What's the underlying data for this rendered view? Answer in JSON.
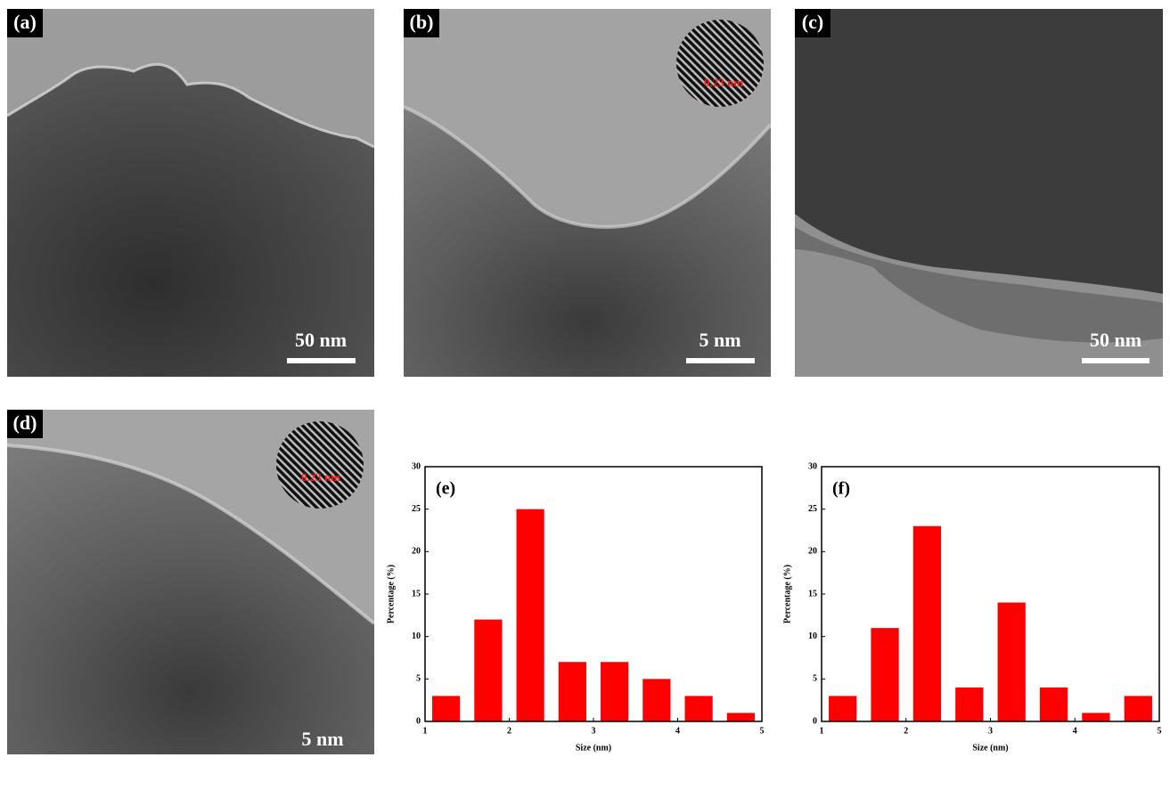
{
  "panels": [
    {
      "label": "(a)",
      "scale": "50 nm"
    },
    {
      "label": "(b)",
      "scale": "5 nm",
      "inset": "0.23 nm"
    },
    {
      "label": "(c)",
      "scale": "50 nm"
    },
    {
      "label": "(d)",
      "scale": "5 nm",
      "inset": "0.23 nm"
    }
  ],
  "chart_data": [
    {
      "type": "bar",
      "label": "(e)",
      "x_label": "Size (nm)",
      "y_label": "Percentage (%)",
      "x": [
        1.25,
        1.75,
        2.25,
        2.75,
        3.25,
        3.75,
        4.25,
        4.75
      ],
      "values": [
        3,
        12,
        25,
        7,
        7,
        5,
        3,
        1
      ],
      "color": "#ff0000",
      "xlim": [
        1,
        5
      ],
      "xticks": [
        1,
        2,
        3,
        4,
        5
      ],
      "ylim": [
        0,
        30
      ],
      "yticks": [
        0,
        5,
        10,
        15,
        20,
        25,
        30
      ]
    },
    {
      "type": "bar",
      "label": "(f)",
      "x_label": "Size (nm)",
      "y_label": "Percentage (%)",
      "x": [
        1.25,
        1.75,
        2.25,
        2.75,
        3.25,
        3.75,
        4.25,
        4.75
      ],
      "values": [
        3,
        11,
        23,
        4,
        14,
        4,
        1,
        3
      ],
      "color": "#ff0000",
      "xlim": [
        1,
        5
      ],
      "xticks": [
        1,
        2,
        3,
        4,
        5
      ],
      "ylim": [
        0,
        30
      ],
      "yticks": [
        0,
        5,
        10,
        15,
        20,
        25,
        30
      ]
    }
  ]
}
